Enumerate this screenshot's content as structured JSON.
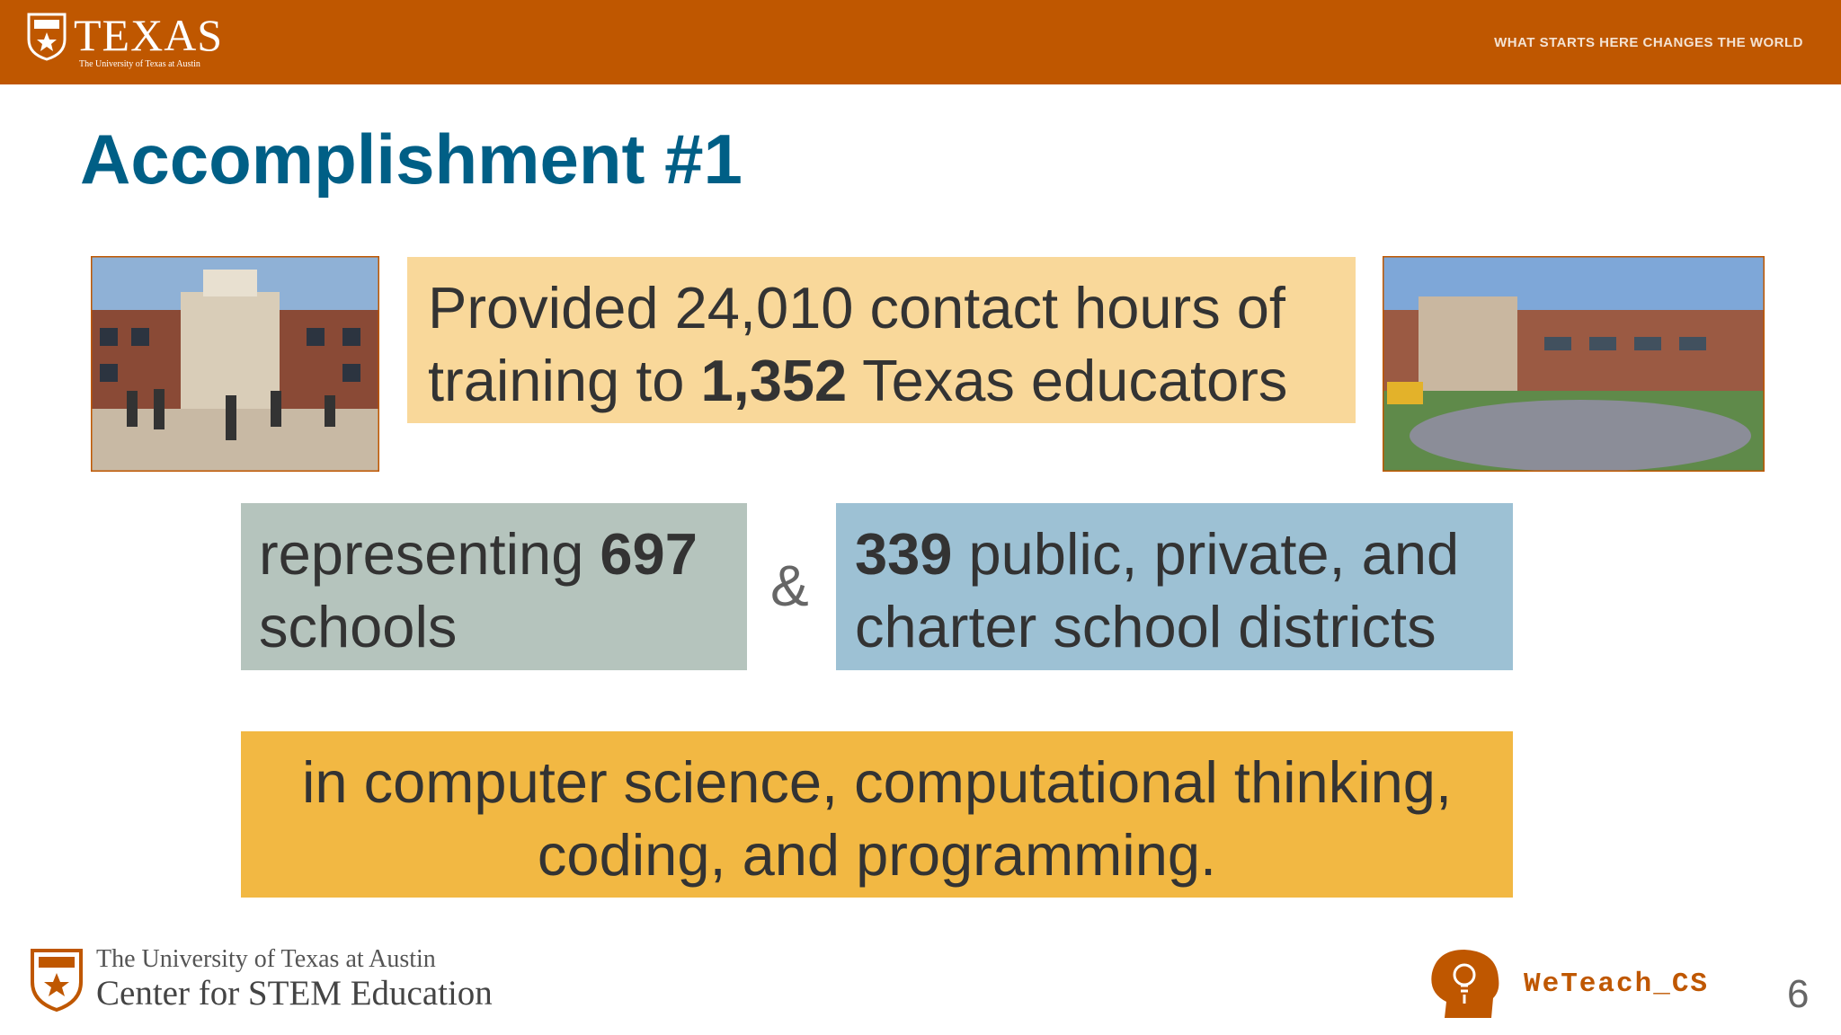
{
  "header": {
    "logo": "TEXAS",
    "logo_subtitle": "The University of Texas at Austin",
    "tagline": "WHAT STARTS HERE CHANGES THE WORLD"
  },
  "title": "Accomplishment #1",
  "boxes": [
    {
      "lines": [
        [
          {
            "text": "Provided 24,010 contact hours of"
          }
        ],
        [
          {
            "text": "training to "
          },
          {
            "text": "1,352",
            "bold": true
          },
          {
            "text": " Texas educators"
          }
        ]
      ]
    },
    {
      "lines": [
        [
          {
            "text": "representing "
          },
          {
            "text": "697",
            "bold": true
          }
        ],
        [
          {
            "text": "schools"
          }
        ]
      ]
    },
    {
      "lines": [
        [
          {
            "text": "339",
            "bold": true
          },
          {
            "text": " public, private, and"
          }
        ],
        [
          {
            "text": "charter school districts"
          }
        ]
      ]
    },
    {
      "lines": [
        [
          {
            "text": "in computer science, computational thinking,"
          }
        ],
        [
          {
            "text": "coding, and programming."
          }
        ]
      ]
    }
  ],
  "connector": "&",
  "footer": {
    "org_line1": "The University of Texas at Austin",
    "org_line2": "Center for STEM Education",
    "brand": "WeTeach_CS",
    "page_number": 6
  }
}
